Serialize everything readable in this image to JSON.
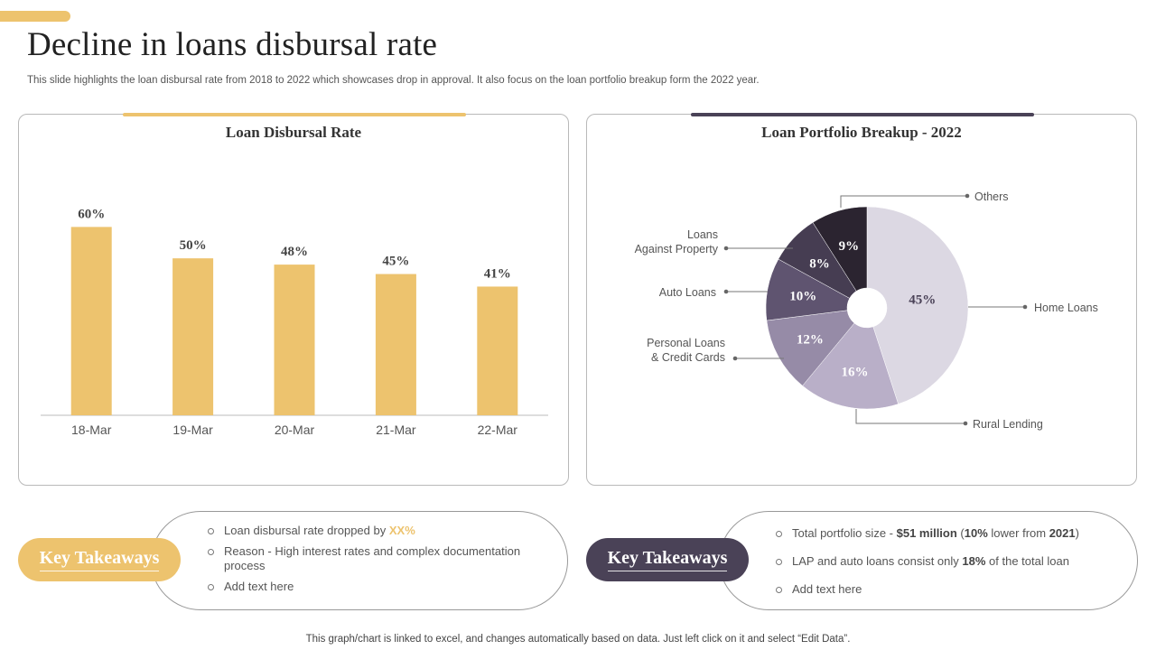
{
  "title": "Decline in loans disbursal rate",
  "subtitle": "This slide highlights the loan disbursal rate from 2018 to 2022 which showcases drop in approval. It also focus on the loan portfolio breakup form the 2022 year.",
  "colors": {
    "gold": "#EDC36E",
    "purple": "#4A4257"
  },
  "chart_data": [
    {
      "type": "bar",
      "title": "Loan Disbursal Rate",
      "categories": [
        "18-Mar",
        "19-Mar",
        "20-Mar",
        "21-Mar",
        "22-Mar"
      ],
      "values": [
        60,
        50,
        48,
        45,
        41
      ],
      "value_labels": [
        "60%",
        "50%",
        "48%",
        "45%",
        "41%"
      ],
      "ylim": [
        0,
        65
      ],
      "xlabel": "",
      "ylabel": "",
      "grid": false,
      "color": "#EDC36E"
    },
    {
      "type": "pie",
      "title": "Loan Portfolio Breakup - 2022",
      "labels": [
        "Home Loans",
        "Rural Lending",
        "Personal Loans & Credit Cards",
        "Auto Loans",
        "Loans Against Property",
        "Others"
      ],
      "label_lines": [
        [
          "Home Loans"
        ],
        [
          "Rural Lending"
        ],
        [
          "Personal Loans",
          "& Credit Cards"
        ],
        [
          "Auto Loans"
        ],
        [
          "Loans",
          "Against Property"
        ],
        [
          "Others"
        ]
      ],
      "values": [
        45,
        16,
        12,
        10,
        8,
        9
      ],
      "value_labels": [
        "45%",
        "16%",
        "12%",
        "10%",
        "8%",
        "9%"
      ],
      "colors": [
        "#DCD8E3",
        "#B9AFC8",
        "#968BA7",
        "#5F5470",
        "#463D52",
        "#2B2430"
      ],
      "donut": true
    }
  ],
  "takeaways_left": {
    "label": "Key Takeaways",
    "items": [
      {
        "text": "Loan disbursal rate dropped by ",
        "highlight": "XX%"
      },
      {
        "text": "Reason - High interest rates and complex documentation process"
      },
      {
        "text": "Add text here"
      }
    ]
  },
  "takeaways_right": {
    "label": "Key Takeaways",
    "items": [
      {
        "t1": "Total portfolio size - ",
        "b1": "$51 million",
        "t2": " (",
        "b2": "10%",
        "t3": " lower from ",
        "b3": "2021",
        "t4": ")"
      },
      {
        "t1": "LAP and auto loans consist only ",
        "b1": "18%",
        "t2": " of the total loan"
      },
      {
        "t1": "Add text here"
      }
    ]
  },
  "footnote": "This graph/chart is linked to excel,  and changes automatically based on data. Just left click on it and select “Edit Data”."
}
